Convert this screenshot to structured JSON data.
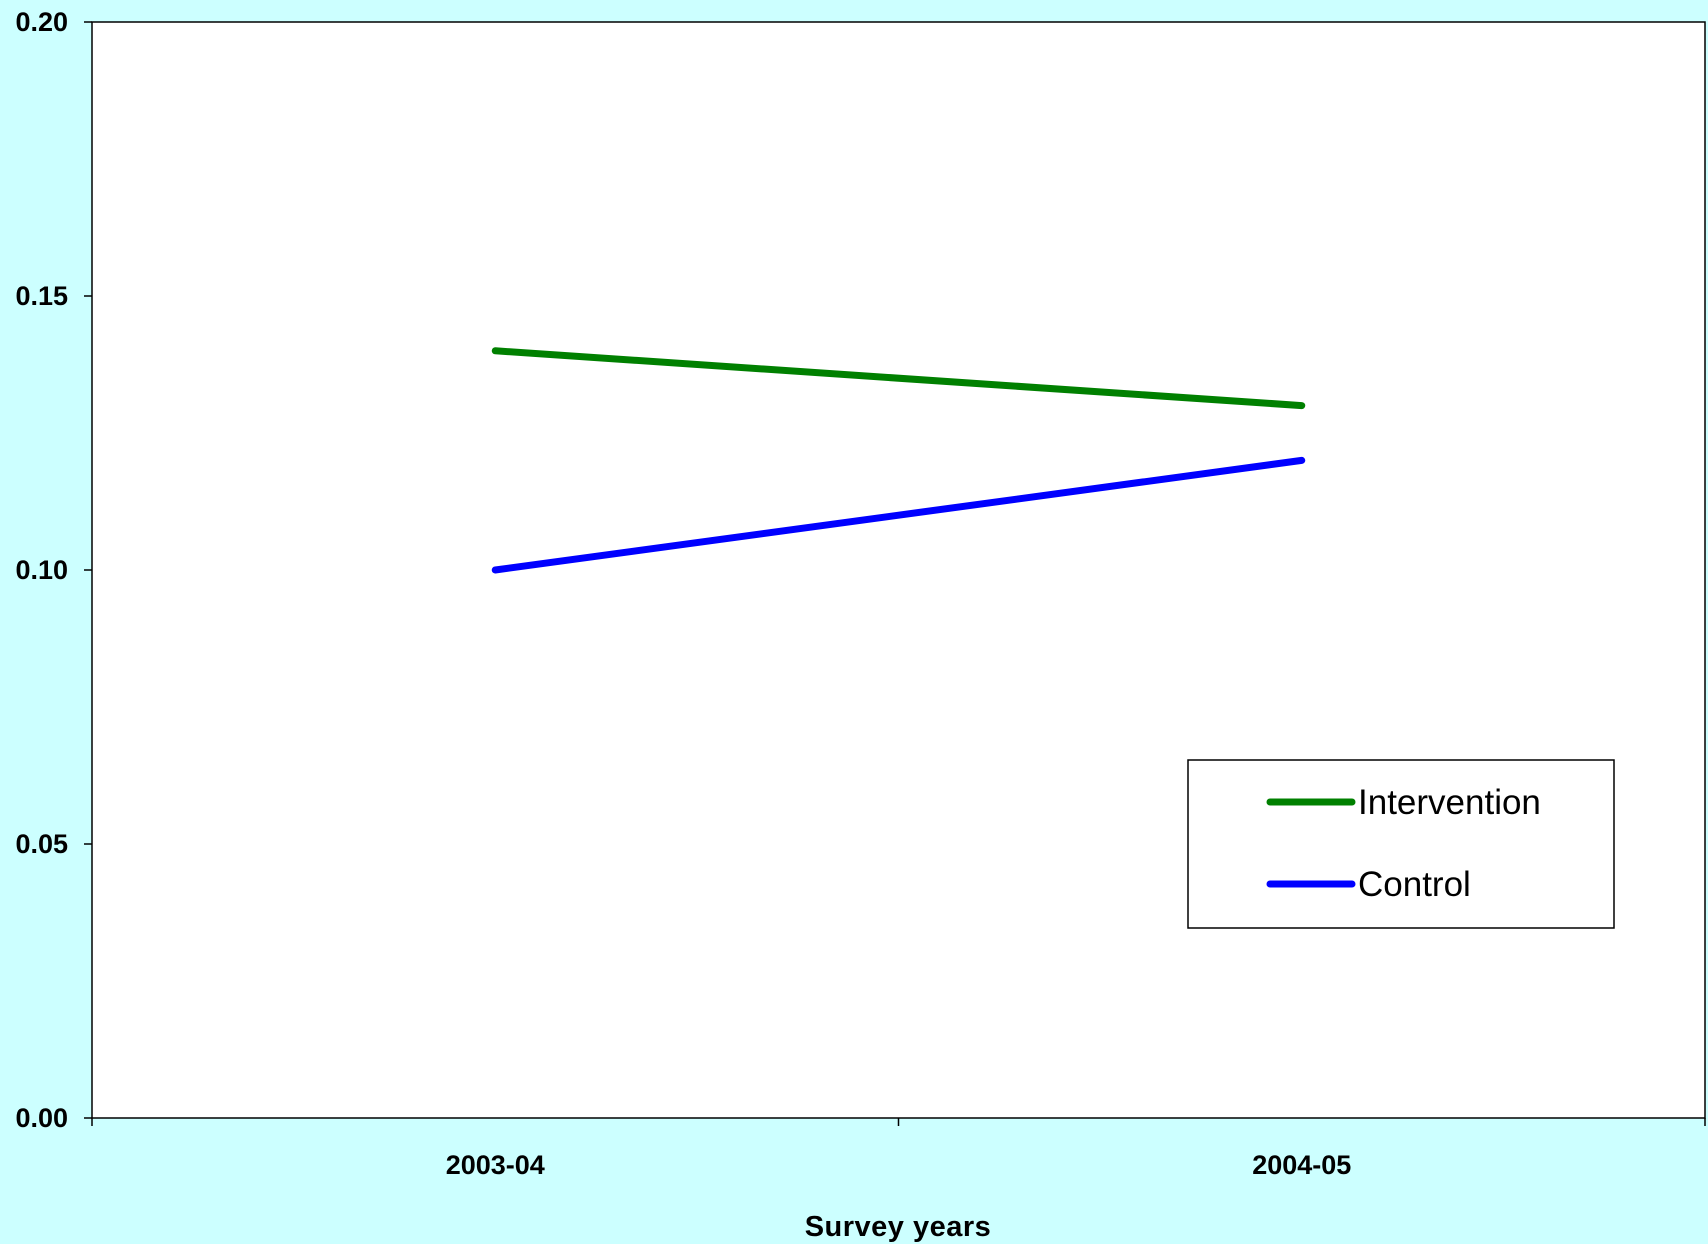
{
  "chart_data": {
    "type": "line",
    "categories": [
      "2003-04",
      "2004-05"
    ],
    "series": [
      {
        "name": "Intervention",
        "values": [
          0.14,
          0.13
        ],
        "color": "#008000"
      },
      {
        "name": "Control",
        "values": [
          0.1,
          0.12
        ],
        "color": "#0000ff"
      }
    ],
    "title": "",
    "xlabel": "Survey years",
    "ylabel": "",
    "ylim": [
      0.0,
      0.2
    ],
    "yticks": [
      "0.00",
      "0.05",
      "0.10",
      "0.15",
      "0.20"
    ],
    "grid": false,
    "legend_position": "bottom-right",
    "plot_background": "#ffffff",
    "page_background": "#ccffff"
  }
}
